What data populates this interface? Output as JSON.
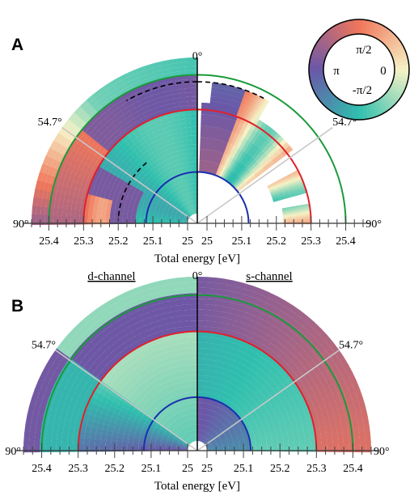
{
  "colors": {
    "phase_pi": "#6a57a8",
    "phase_minus_half_pi": "#2fbfae",
    "phase_zero": "#f6f2c6",
    "phase_half_pi": "#f0765a",
    "arc_outer": "#1a9a3a",
    "arc_middle": "#e0202a",
    "arc_inner": "#1a30b0",
    "guide_line": "#c8c8c8"
  },
  "colorbar": {
    "label_half_pi": "π/2",
    "label_pi": "π",
    "label_zero": "0",
    "label_minus_half_pi": "-π/2"
  },
  "chart_data": [
    {
      "panel": "A",
      "type": "heatmap",
      "coordinate_system": "polar (radius = total energy, angle = emission angle)",
      "xlabel": "Total energy [eV]",
      "tick_labels_left": [
        "25.4",
        "25.3",
        "25.2",
        "25.1",
        "25"
      ],
      "tick_labels_right": [
        "25",
        "25.1",
        "25.2",
        "25.3",
        "25.4"
      ],
      "energy_range_eV": [
        25.0,
        25.45
      ],
      "angle_labels": [
        "0°",
        "54.7°",
        "54.7°",
        "90°",
        "90°"
      ],
      "angle_range_deg": [
        0,
        90
      ],
      "reference_arcs_eV": {
        "outer": 25.4,
        "middle": 25.3,
        "inner": 25.12
      },
      "magic_angle_line_deg": 54.7,
      "dashed_contour": true,
      "right_half_blank_region": "white (no data) outside measured sectors"
    },
    {
      "panel": "B",
      "type": "heatmap",
      "coordinate_system": "polar (radius = total energy, angle = emission angle)",
      "xlabel": "Total energy [eV]",
      "left_title": "d-channel",
      "right_title": "s-channel",
      "tick_labels_left": [
        "25.4",
        "25.3",
        "25.2",
        "25.1",
        "25"
      ],
      "tick_labels_right": [
        "25",
        "25.1",
        "25.2",
        "25.3",
        "25.4"
      ],
      "energy_range_eV": [
        25.0,
        25.45
      ],
      "angle_labels": [
        "0°",
        "54.7°",
        "54.7°",
        "90°",
        "90°"
      ],
      "angle_range_deg": [
        0,
        90
      ],
      "reference_arcs_eV": {
        "outer": 25.4,
        "middle": 25.3,
        "inner": 25.12
      },
      "magic_angle_line_deg": 54.7
    }
  ]
}
